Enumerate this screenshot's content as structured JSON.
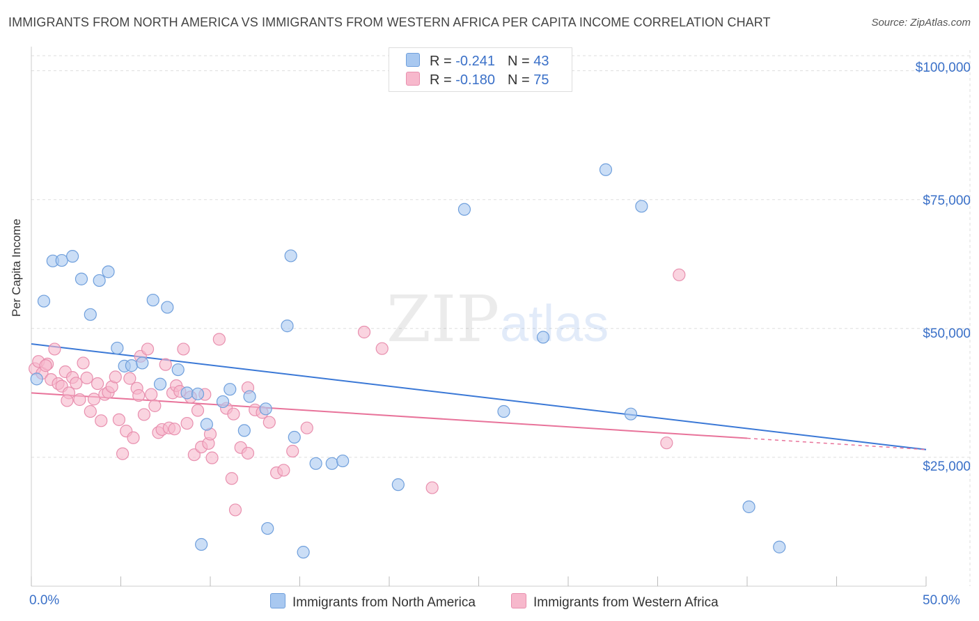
{
  "title": "IMMIGRANTS FROM NORTH AMERICA VS IMMIGRANTS FROM WESTERN AFRICA PER CAPITA INCOME CORRELATION CHART",
  "source": "Source: ZipAtlas.com",
  "watermark": {
    "zip": "ZIP",
    "atlas": "atlas"
  },
  "legend": {
    "rows": [
      {
        "r_label": "R = ",
        "r_value": "-0.241",
        "n_label": "N = ",
        "n_value": "43",
        "color": "#a8c8f0"
      },
      {
        "r_label": "R = ",
        "r_value": "-0.180",
        "n_label": "N = ",
        "n_value": "75",
        "color": "#f7b8cc"
      }
    ]
  },
  "bottom_legend": [
    {
      "label": "Immigrants from North America",
      "color": "#a8c8f0"
    },
    {
      "label": "Immigrants from Western Africa",
      "color": "#f7b8cc"
    }
  ],
  "colors": {
    "blue": "#3a78d6",
    "blue_fill": "#a8c8f0",
    "pink": "#e8739a",
    "pink_fill": "#f7b8cc",
    "tick_text": "#3a70c8"
  },
  "chart_data": {
    "type": "scatter",
    "xlabel": "",
    "ylabel": "Per Capita Income",
    "xlim": [
      0,
      50
    ],
    "ylim": [
      0,
      104000
    ],
    "x_tick_labels": [
      "0.0%",
      "50.0%"
    ],
    "y_ticks": [
      {
        "value": 25000,
        "label": "$25,000"
      },
      {
        "value": 50000,
        "label": "$50,000"
      },
      {
        "value": 75000,
        "label": "$75,000"
      },
      {
        "value": 100000,
        "label": "$100,000"
      }
    ],
    "grid": true,
    "series": [
      {
        "name": "Immigrants from North America",
        "color": "#3a78d6",
        "points": [
          [
            0.3,
            40200
          ],
          [
            0.7,
            55300
          ],
          [
            1.2,
            63100
          ],
          [
            1.7,
            63200
          ],
          [
            2.3,
            64000
          ],
          [
            2.8,
            59600
          ],
          [
            3.3,
            52700
          ],
          [
            3.8,
            59300
          ],
          [
            4.3,
            61000
          ],
          [
            4.8,
            46200
          ],
          [
            5.2,
            42700
          ],
          [
            5.6,
            42800
          ],
          [
            6.2,
            43300
          ],
          [
            6.8,
            55500
          ],
          [
            7.2,
            39200
          ],
          [
            7.6,
            54100
          ],
          [
            8.2,
            42000
          ],
          [
            8.7,
            37500
          ],
          [
            9.3,
            37300
          ],
          [
            9.8,
            31400
          ],
          [
            10.7,
            35800
          ],
          [
            11.1,
            38200
          ],
          [
            11.9,
            30200
          ],
          [
            12.2,
            36800
          ],
          [
            13.1,
            34400
          ],
          [
            14.5,
            64100
          ],
          [
            14.3,
            50500
          ],
          [
            14.7,
            28900
          ],
          [
            15.9,
            23800
          ],
          [
            16.8,
            23800
          ],
          [
            17.4,
            24300
          ],
          [
            20.5,
            19700
          ],
          [
            24.2,
            73100
          ],
          [
            26.4,
            33900
          ],
          [
            28.6,
            48300
          ],
          [
            32.1,
            80800
          ],
          [
            33.5,
            33400
          ],
          [
            34.1,
            73700
          ],
          [
            40.1,
            15400
          ],
          [
            41.8,
            7600
          ],
          [
            9.5,
            8100
          ],
          [
            13.2,
            11200
          ],
          [
            15.2,
            6600
          ]
        ]
      },
      {
        "name": "Immigrants from Western Africa",
        "color": "#e8739a",
        "points": [
          [
            0.2,
            42200
          ],
          [
            0.4,
            43600
          ],
          [
            0.6,
            41300
          ],
          [
            0.9,
            43100
          ],
          [
            1.1,
            40100
          ],
          [
            1.3,
            46000
          ],
          [
            1.5,
            39300
          ],
          [
            1.7,
            38800
          ],
          [
            1.9,
            41600
          ],
          [
            2.1,
            37500
          ],
          [
            2.3,
            40500
          ],
          [
            2.5,
            39400
          ],
          [
            2.7,
            36200
          ],
          [
            2.9,
            43300
          ],
          [
            3.1,
            40400
          ],
          [
            3.3,
            33900
          ],
          [
            3.5,
            36300
          ],
          [
            3.7,
            39300
          ],
          [
            3.9,
            32100
          ],
          [
            4.1,
            37200
          ],
          [
            4.3,
            37600
          ],
          [
            4.5,
            38700
          ],
          [
            4.7,
            40600
          ],
          [
            4.9,
            32300
          ],
          [
            5.1,
            25700
          ],
          [
            5.3,
            30100
          ],
          [
            5.5,
            40300
          ],
          [
            5.7,
            28800
          ],
          [
            5.9,
            38400
          ],
          [
            6.1,
            44600
          ],
          [
            6.3,
            33300
          ],
          [
            6.5,
            46000
          ],
          [
            6.7,
            37200
          ],
          [
            6.9,
            35000
          ],
          [
            7.1,
            29800
          ],
          [
            7.3,
            30400
          ],
          [
            7.5,
            43000
          ],
          [
            7.7,
            30700
          ],
          [
            7.9,
            37500
          ],
          [
            8.1,
            38900
          ],
          [
            8.3,
            37800
          ],
          [
            8.5,
            46000
          ],
          [
            8.7,
            31600
          ],
          [
            8.9,
            36700
          ],
          [
            9.1,
            25500
          ],
          [
            9.3,
            34100
          ],
          [
            9.5,
            27000
          ],
          [
            9.7,
            37200
          ],
          [
            9.9,
            27700
          ],
          [
            10.1,
            24900
          ],
          [
            10.5,
            47900
          ],
          [
            10.9,
            34500
          ],
          [
            11.3,
            33400
          ],
          [
            11.7,
            26900
          ],
          [
            12.1,
            25800
          ],
          [
            12.5,
            34200
          ],
          [
            12.9,
            33700
          ],
          [
            13.3,
            31800
          ],
          [
            13.7,
            22000
          ],
          [
            14.1,
            22500
          ],
          [
            14.6,
            26200
          ],
          [
            15.4,
            30700
          ],
          [
            11.2,
            20900
          ],
          [
            11.4,
            14800
          ],
          [
            18.6,
            49300
          ],
          [
            19.6,
            46100
          ],
          [
            22.4,
            19100
          ],
          [
            36.2,
            60400
          ],
          [
            35.5,
            27800
          ],
          [
            12.1,
            38500
          ],
          [
            6.0,
            37000
          ],
          [
            8.0,
            30500
          ],
          [
            10.0,
            29500
          ],
          [
            2.0,
            36000
          ],
          [
            0.8,
            42800
          ]
        ]
      }
    ],
    "trend_lines": [
      {
        "series": "Immigrants from North America",
        "x": [
          0,
          50
        ],
        "y": [
          47000,
          26500
        ]
      },
      {
        "series": "Immigrants from Western Africa",
        "x": [
          0,
          40
        ],
        "y": [
          37500,
          28700
        ],
        "dashed_extension_to": 50
      }
    ]
  }
}
